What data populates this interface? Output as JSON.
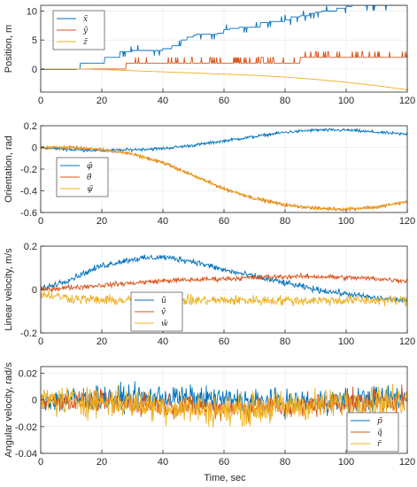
{
  "colors": {
    "blue": "#0072BD",
    "orange": "#D95319",
    "yellow": "#EDB120",
    "axis": "#262626",
    "grid": "#e6e6e6"
  },
  "xlabel": "Time, sec",
  "chart_data": [
    {
      "type": "line",
      "ylabel": "Position, m",
      "xlim": [
        0,
        120
      ],
      "ylim": [
        -4,
        11
      ],
      "xticks": [
        0,
        20,
        40,
        60,
        80,
        100,
        120
      ],
      "yticks": [
        0,
        5,
        10
      ],
      "legend_position": "top-left",
      "series": [
        {
          "name": "x̃",
          "color": "#0072BD",
          "x": [
            0,
            12,
            13,
            20,
            21,
            25,
            26,
            30,
            40,
            43,
            46,
            48,
            50,
            51,
            58,
            60,
            62,
            65,
            72,
            75,
            80,
            82,
            85,
            88,
            90,
            92,
            96,
            97,
            100,
            102,
            103,
            120
          ],
          "y": [
            -0.1,
            0,
            1,
            1,
            2,
            2,
            3,
            3.2,
            3.5,
            4,
            5,
            5.5,
            5.8,
            6,
            6.2,
            6.8,
            7,
            7.2,
            8,
            8.2,
            8.5,
            9,
            9.2,
            9.6,
            9.8,
            10,
            10,
            10.5,
            10.8,
            11,
            11,
            11
          ]
        },
        {
          "name": "ỹ",
          "color": "#D95319",
          "x": [
            0,
            120
          ],
          "y": [
            0,
            2
          ]
        },
        {
          "name": "z̃",
          "color": "#EDB120",
          "x": [
            0,
            10,
            20,
            30,
            40,
            50,
            60,
            70,
            80,
            90,
            100,
            110,
            120
          ],
          "y": [
            0,
            0,
            -0.1,
            -0.3,
            -0.5,
            -0.7,
            -0.9,
            -1.1,
            -1.4,
            -1.8,
            -2.3,
            -2.9,
            -3.6
          ]
        }
      ]
    },
    {
      "type": "line",
      "ylabel": "Orientation, rad",
      "xlim": [
        0,
        120
      ],
      "ylim": [
        -0.6,
        0.2
      ],
      "xticks": [
        0,
        20,
        40,
        60,
        80,
        100,
        120
      ],
      "yticks": [
        0.2,
        0,
        -0.2,
        -0.4,
        -0.6
      ],
      "legend_position": "bottom-left",
      "series": [
        {
          "name": "φ̃",
          "color": "#0072BD",
          "x": [
            0,
            10,
            20,
            30,
            40,
            50,
            60,
            70,
            80,
            90,
            100,
            110,
            120
          ],
          "y": [
            0,
            -0.02,
            -0.03,
            -0.02,
            -0.01,
            0.02,
            0.06,
            0.1,
            0.14,
            0.16,
            0.16,
            0.14,
            0.12
          ]
        },
        {
          "name": "θ̃",
          "color": "#D95319",
          "x": [
            0,
            10,
            20,
            30,
            40,
            50,
            60,
            70,
            80,
            90,
            100,
            110,
            120
          ],
          "y": [
            0,
            0,
            -0.02,
            -0.06,
            -0.14,
            -0.26,
            -0.38,
            -0.47,
            -0.53,
            -0.56,
            -0.57,
            -0.55,
            -0.5
          ]
        },
        {
          "name": "ψ̃",
          "color": "#EDB120",
          "x": [
            0,
            10,
            20,
            30,
            40,
            50,
            60,
            70,
            80,
            90,
            100,
            110,
            120
          ],
          "y": [
            0,
            0,
            -0.02,
            -0.06,
            -0.14,
            -0.26,
            -0.38,
            -0.47,
            -0.53,
            -0.56,
            -0.57,
            -0.55,
            -0.5
          ]
        }
      ]
    },
    {
      "type": "line",
      "ylabel": "Linear velocity, m/s",
      "xlim": [
        0,
        120
      ],
      "ylim": [
        -0.2,
        0.2
      ],
      "xticks": [
        0,
        20,
        40,
        60,
        80,
        100,
        120
      ],
      "yticks": [
        0.2,
        0,
        -0.2
      ],
      "legend_position": "bottom-center",
      "series": [
        {
          "name": "ũ",
          "color": "#0072BD",
          "x": [
            0,
            10,
            20,
            30,
            40,
            50,
            60,
            70,
            80,
            90,
            100,
            110,
            120
          ],
          "y": [
            0,
            0.05,
            0.11,
            0.14,
            0.15,
            0.13,
            0.09,
            0.06,
            0.03,
            0,
            -0.02,
            -0.04,
            -0.05
          ]
        },
        {
          "name": "ṽ",
          "color": "#D95319",
          "x": [
            0,
            10,
            20,
            30,
            40,
            50,
            60,
            70,
            80,
            90,
            100,
            110,
            120
          ],
          "y": [
            0,
            0.01,
            0.02,
            0.03,
            0.04,
            0.045,
            0.05,
            0.055,
            0.06,
            0.06,
            0.055,
            0.05,
            0.04
          ]
        },
        {
          "name": "w̃",
          "color": "#EDB120",
          "x": [
            0,
            10,
            20,
            30,
            40,
            50,
            60,
            70,
            80,
            90,
            100,
            110,
            120
          ],
          "y": [
            -0.02,
            -0.04,
            -0.05,
            -0.05,
            -0.05,
            -0.05,
            -0.05,
            -0.05,
            -0.05,
            -0.05,
            -0.05,
            -0.05,
            -0.05
          ]
        }
      ]
    },
    {
      "type": "line",
      "ylabel": "Angular velocity, rad/s",
      "xlim": [
        0,
        120
      ],
      "ylim": [
        -0.04,
        0.025
      ],
      "xticks": [
        0,
        20,
        40,
        60,
        80,
        100,
        120
      ],
      "yticks": [
        0.02,
        0,
        -0.02,
        -0.04
      ],
      "legend_position": "bottom-right",
      "series": [
        {
          "name": "p̃",
          "color": "#0072BD",
          "x": [
            0,
            20,
            40,
            60,
            80,
            100,
            120
          ],
          "y": [
            0,
            0.001,
            0.002,
            0,
            -0.002,
            0,
            0.002
          ]
        },
        {
          "name": "q̃",
          "color": "#D95319",
          "x": [
            0,
            20,
            40,
            60,
            80,
            100,
            120
          ],
          "y": [
            0,
            -0.002,
            -0.004,
            -0.006,
            -0.006,
            -0.002,
            0
          ]
        },
        {
          "name": "r̃",
          "color": "#EDB120",
          "x": [
            0,
            20,
            40,
            60,
            80,
            100,
            120
          ],
          "y": [
            0,
            -0.001,
            -0.005,
            -0.008,
            -0.005,
            -0.002,
            0
          ]
        }
      ]
    }
  ]
}
